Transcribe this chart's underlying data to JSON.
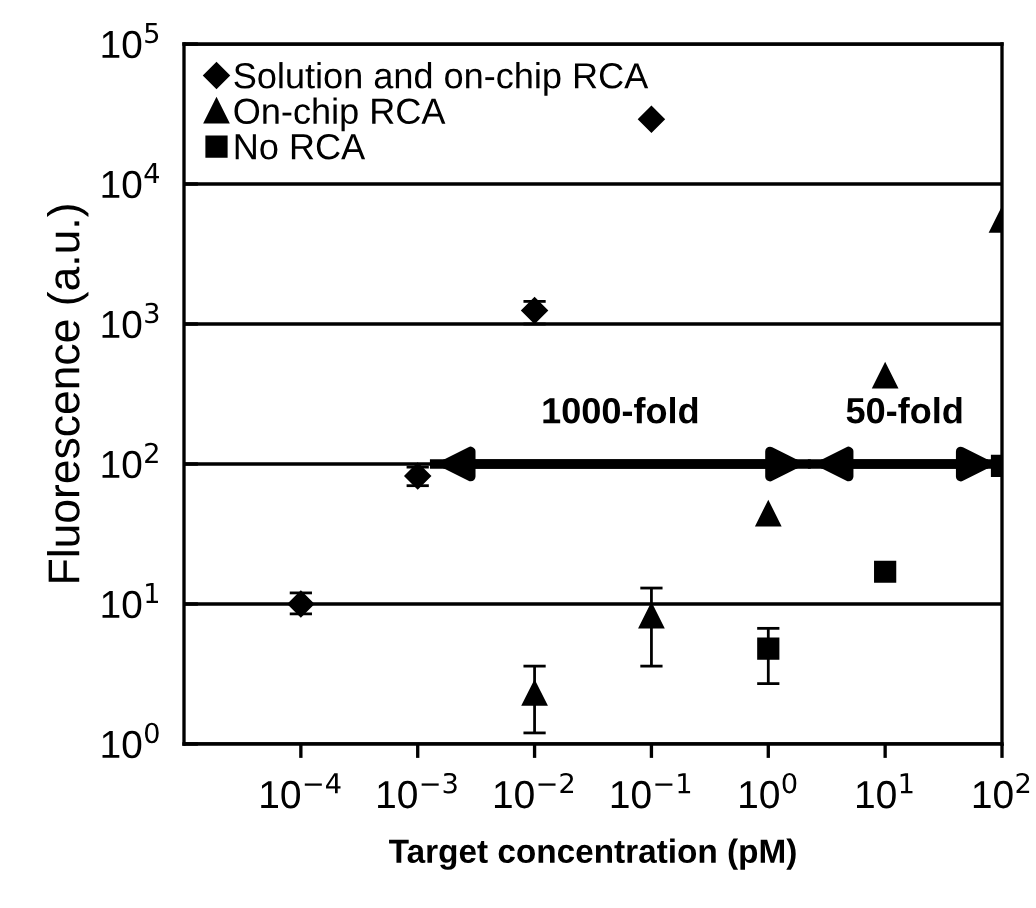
{
  "chart_data": {
    "type": "scatter",
    "xlabel": "Target concentration (pM)",
    "ylabel": "Fluorescence (a.u.)",
    "log": "xy",
    "grid": "y",
    "legend": "top left",
    "xlim": [
      1e-05,
      100
    ],
    "xticks": [
      {
        "value": 0.0001,
        "label": "10$^{−4}$"
      },
      {
        "value": 0.001,
        "label": "10$^{−3}$"
      },
      {
        "value": 0.01,
        "label": "10$^{−2}$"
      },
      {
        "value": 0.1,
        "label": "10$^{−1}$"
      },
      {
        "value": 1,
        "label": "10$^{0}$"
      },
      {
        "value": 10,
        "label": "10$^{1}$"
      },
      {
        "value": 100,
        "label": "10$^{2}$"
      }
    ],
    "ylim": [
      1,
      100000
    ],
    "yticks": [
      {
        "value": 1,
        "label": "10$^{0}$"
      },
      {
        "value": 10,
        "label": "10$^{1}$"
      },
      {
        "value": 100,
        "label": "10$^{2}$"
      },
      {
        "value": 1000,
        "label": "10$^{3}$"
      },
      {
        "value": 10000,
        "label": "10$^{4}$"
      },
      {
        "value": 100000,
        "label": "10$^{5}$"
      }
    ],
    "series": [
      {
        "name": "Solution and on-chip RCA",
        "color": "#000000",
        "marker": "diamond",
        "x": [
          0.0001,
          0.001,
          0.01,
          0.1
        ],
        "values": [
          10,
          82,
          1250,
          29000
        ],
        "errors": [
          [
            8.5,
            12
          ],
          [
            70,
            95
          ],
          [
            1000,
            1450
          ],
          null
        ]
      },
      {
        "name": "On-chip RCA",
        "color": "#000000",
        "marker": "triangle",
        "x": [
          0.01,
          0.1,
          1,
          10,
          100
        ],
        "values": [
          2.3,
          8.2,
          44,
          425,
          5500
        ],
        "errors": [
          [
            1.2,
            3.6
          ],
          [
            3.6,
            13
          ],
          null,
          null,
          null
        ]
      },
      {
        "name": "No RCA",
        "color": "#000000",
        "marker": "square",
        "x": [
          1,
          10,
          100
        ],
        "values": [
          4.8,
          17,
          97
        ],
        "errors": [
          [
            2.7,
            6.7
          ],
          null,
          null
        ]
      },
      {
        "type": "line",
        "color": "#000000",
        "x": [
          0.0014,
          2.1
        ],
        "values": [
          100,
          100
        ]
      },
      {
        "type": "line",
        "color": "#000000",
        "x": [
          2.4,
          90
        ],
        "values": [
          100,
          100
        ]
      }
    ],
    "annotations": [
      "1000-fold",
      "50-fold"
    ]
  }
}
